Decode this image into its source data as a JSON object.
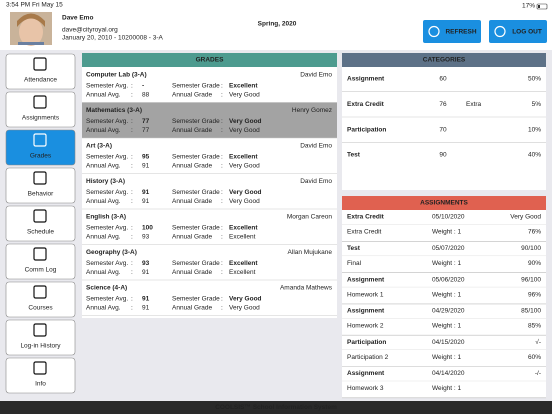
{
  "status_bar": {
    "time": "3:54 PM  Fri May 15",
    "battery": "17%"
  },
  "header": {
    "name": "Dave Emo",
    "email": "dave@cityroyal.org",
    "info": "January 20, 2010 - 10200008 - 3-A",
    "term": "Spring, 2020",
    "buttons": [
      "REFRESH",
      "LOG OUT"
    ]
  },
  "nav": {
    "items": [
      "Attendance",
      "Assignments",
      "Grades",
      "Behavior",
      "Schedule",
      "Comm Log",
      "Courses",
      "Log-in History",
      "Info"
    ],
    "selected": 2
  },
  "grades": {
    "title": "GRADES",
    "sep": ":",
    "highlighted": 1,
    "labels": {
      "sem_avg": "Semester Avg.",
      "sem_grade": "Semester Grade",
      "ann_avg": "Annual Avg.",
      "ann_grade": "Annual Grade"
    },
    "rows": [
      {
        "course": "Computer Lab (3-A)",
        "teacher": "David Emo",
        "sem_avg": "-",
        "sem_grade": "Excellent",
        "ann_avg": 88,
        "ann_grade": "Very Good"
      },
      {
        "course": "Mathematics (3-A)",
        "teacher": "Henry Gomez",
        "sem_avg": 77,
        "sem_grade": "Very Good",
        "ann_avg": 77,
        "ann_grade": "Very Good"
      },
      {
        "course": "Art (3-A)",
        "teacher": "David Emo",
        "sem_avg": 95,
        "sem_grade": "Excellent",
        "ann_avg": 91,
        "ann_grade": "Very Good"
      },
      {
        "course": "History (3-A)",
        "teacher": "David Emo",
        "sem_avg": 91,
        "sem_grade": "Very Good",
        "ann_avg": 91,
        "ann_grade": "Very Good"
      },
      {
        "course": "English (3-A)",
        "teacher": "Morgan Careon",
        "sem_avg": 100,
        "sem_grade": "Excellent",
        "ann_avg": 93,
        "ann_grade": "Excellent"
      },
      {
        "course": "Geography (3-A)",
        "teacher": "Allan Mujukane",
        "sem_avg": 93,
        "sem_grade": "Excellent",
        "ann_avg": 91,
        "ann_grade": "Excellent"
      },
      {
        "course": "Science (4-A)",
        "teacher": "Amanda Mathews",
        "sem_avg": 91,
        "sem_grade": "Very Good",
        "ann_avg": 91,
        "ann_grade": "Very Good"
      }
    ]
  },
  "categories": {
    "title": "CATEGORIES",
    "rows": [
      {
        "name": "Assignment",
        "value": 60,
        "percent": "50%"
      },
      {
        "name": "Extra Credit",
        "value": 76,
        "extra": "Extra",
        "percent": "5%"
      },
      {
        "name": "Participation",
        "value": 70,
        "percent": "10%"
      },
      {
        "name": "Test",
        "value": 90,
        "percent": "40%"
      }
    ]
  },
  "assignments": {
    "title": "ASSIGNMENTS",
    "items": [
      {
        "category": "Extra Credit",
        "date": "05/10/2020",
        "score": "Very Good",
        "name": "Extra Credit",
        "weight": "Weight : 1",
        "percent": "76%"
      },
      {
        "category": "Test",
        "date": "05/07/2020",
        "score": "90/100",
        "name": "Final",
        "weight": "Weight : 1",
        "percent": "90%"
      },
      {
        "category": "Assignment",
        "date": "05/06/2020",
        "score": "96/100",
        "name": "Homework 1",
        "weight": "Weight : 1",
        "percent": "96%"
      },
      {
        "category": "Assignment",
        "date": "04/29/2020",
        "score": "85/100",
        "name": "Homework 2",
        "weight": "Weight : 1",
        "percent": "85%"
      },
      {
        "category": "Participation",
        "date": "04/15/2020",
        "score": "√-",
        "name": "Participation 2",
        "weight": "Weight : 1",
        "percent": "60%"
      },
      {
        "category": "Assignment",
        "date": "04/14/2020",
        "score": "-/-",
        "name": "Homework 3",
        "weight": "Weight : 1"
      }
    ]
  },
  "footer": "COOLSIS™ School Information System"
}
